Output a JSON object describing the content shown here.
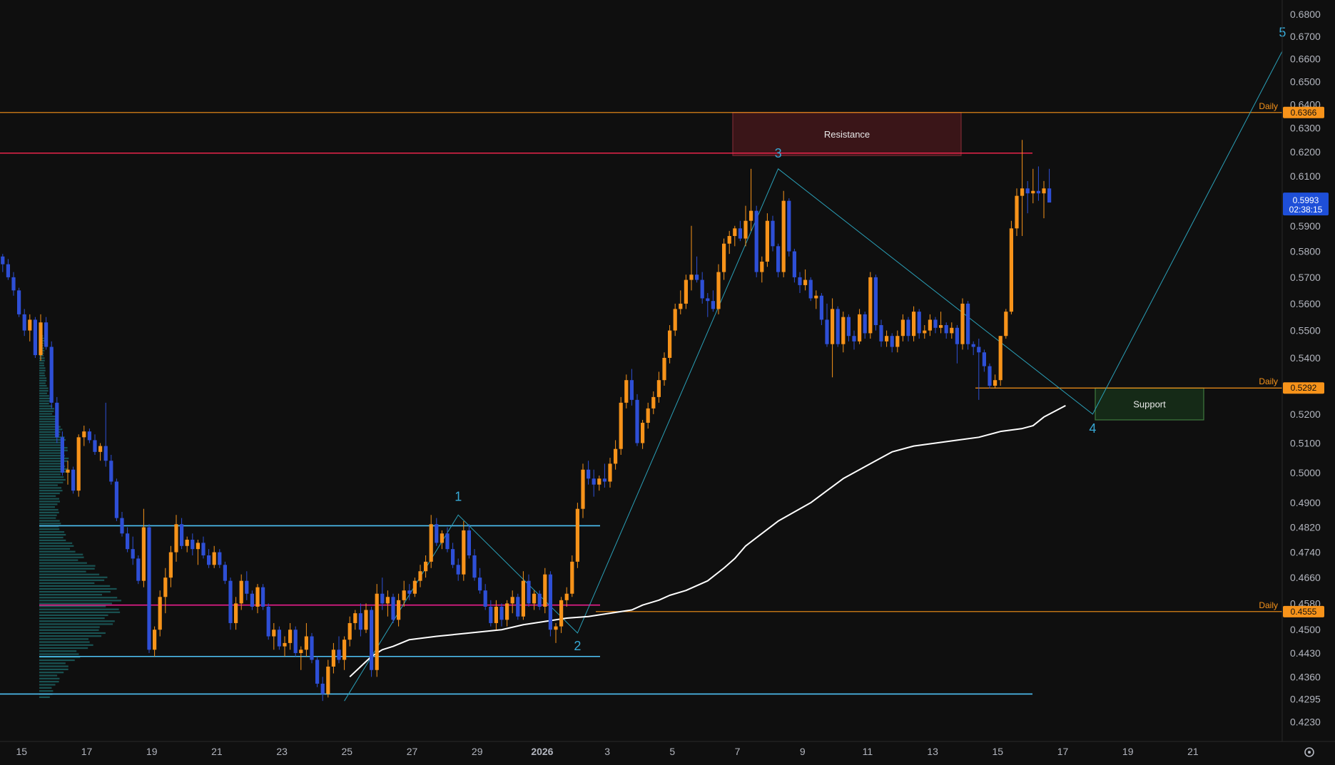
{
  "colors": {
    "background": "#0f0f0f",
    "bull": "#f7931a",
    "bear": "#2e4fd6",
    "ma": "#ffffff",
    "daily": "#f7931a",
    "resistance_line": "#e8244a",
    "poc": "#e91e8c",
    "range": "#4fc3f7",
    "wave": "#2aa0b8",
    "resistance_fill": "#3a1518",
    "support_fill": "#152a17",
    "price_tag": "#1e4fd8",
    "volume_profile": "#1e6b6b"
  },
  "settings_icon": "gear-icon",
  "chart_data": {
    "type": "candlestick",
    "y_axis": {
      "scale": "log",
      "range": [
        0.4175,
        0.6865
      ],
      "ticks": [
        0.68,
        0.67,
        0.66,
        0.65,
        0.64,
        0.63,
        0.62,
        0.61,
        0.59,
        0.58,
        0.57,
        0.56,
        0.55,
        0.54,
        0.52,
        0.51,
        0.5,
        0.49,
        0.482,
        0.474,
        0.466,
        0.458,
        0.45,
        0.443,
        0.436,
        0.4295,
        0.423
      ],
      "tick_labels": [
        "0.6800",
        "0.6700",
        "0.6600",
        "0.6500",
        "0.6400",
        "0.6300",
        "0.6200",
        "0.6100",
        "0.5900",
        "0.5800",
        "0.5700",
        "0.5600",
        "0.5500",
        "0.5400",
        "0.5200",
        "0.5100",
        "0.5000",
        "0.4900",
        "0.4820",
        "0.4740",
        "0.4660",
        "0.4580",
        "0.4500",
        "0.4430",
        "0.4360",
        "0.4295",
        "0.4230"
      ]
    },
    "x_axis": {
      "ticks": [
        "15",
        "17",
        "19",
        "21",
        "23",
        "25",
        "27",
        "29",
        "2026",
        "3",
        "5",
        "7",
        "9",
        "11",
        "13",
        "15",
        "17",
        "19",
        "21"
      ],
      "bold_tick": "2026"
    },
    "bars_per_day": 6,
    "candles": [
      [
        0.578,
        0.579,
        0.572,
        0.575
      ],
      [
        0.575,
        0.577,
        0.569,
        0.57
      ],
      [
        0.57,
        0.572,
        0.563,
        0.565
      ],
      [
        0.565,
        0.566,
        0.555,
        0.556
      ],
      [
        0.556,
        0.558,
        0.548,
        0.55
      ],
      [
        0.55,
        0.556,
        0.546,
        0.554
      ],
      [
        0.554,
        0.555,
        0.54,
        0.541
      ],
      [
        0.541,
        0.556,
        0.539,
        0.553
      ],
      [
        0.553,
        0.555,
        0.543,
        0.544
      ],
      [
        0.544,
        0.546,
        0.522,
        0.524
      ],
      [
        0.524,
        0.526,
        0.51,
        0.512
      ],
      [
        0.512,
        0.514,
        0.499,
        0.5
      ],
      [
        0.5,
        0.504,
        0.496,
        0.501
      ],
      [
        0.501,
        0.502,
        0.493,
        0.494
      ],
      [
        0.494,
        0.513,
        0.492,
        0.512
      ],
      [
        0.512,
        0.516,
        0.509,
        0.514
      ],
      [
        0.514,
        0.515,
        0.51,
        0.511
      ],
      [
        0.511,
        0.513,
        0.506,
        0.507
      ],
      [
        0.507,
        0.51,
        0.504,
        0.509
      ],
      [
        0.509,
        0.524,
        0.502,
        0.504
      ],
      [
        0.504,
        0.506,
        0.496,
        0.497
      ],
      [
        0.497,
        0.498,
        0.484,
        0.485
      ],
      [
        0.485,
        0.487,
        0.479,
        0.48
      ],
      [
        0.48,
        0.482,
        0.474,
        0.475
      ],
      [
        0.475,
        0.479,
        0.47,
        0.472
      ],
      [
        0.472,
        0.473,
        0.464,
        0.465
      ],
      [
        0.465,
        0.488,
        0.463,
        0.482
      ],
      [
        0.482,
        0.483,
        0.443,
        0.444
      ],
      [
        0.444,
        0.451,
        0.442,
        0.45
      ],
      [
        0.45,
        0.462,
        0.448,
        0.46
      ],
      [
        0.46,
        0.469,
        0.455,
        0.466
      ],
      [
        0.466,
        0.476,
        0.463,
        0.474
      ],
      [
        0.474,
        0.486,
        0.471,
        0.483
      ],
      [
        0.483,
        0.485,
        0.475,
        0.476
      ],
      [
        0.476,
        0.479,
        0.474,
        0.478
      ],
      [
        0.478,
        0.48,
        0.473,
        0.475
      ],
      [
        0.475,
        0.478,
        0.47,
        0.477
      ],
      [
        0.477,
        0.479,
        0.472,
        0.473
      ],
      [
        0.473,
        0.475,
        0.469,
        0.47
      ],
      [
        0.47,
        0.476,
        0.469,
        0.474
      ],
      [
        0.474,
        0.475,
        0.469,
        0.47
      ],
      [
        0.47,
        0.471,
        0.464,
        0.465
      ],
      [
        0.465,
        0.466,
        0.45,
        0.452
      ],
      [
        0.452,
        0.46,
        0.45,
        0.458
      ],
      [
        0.458,
        0.467,
        0.456,
        0.465
      ],
      [
        0.465,
        0.468,
        0.459,
        0.461
      ],
      [
        0.461,
        0.462,
        0.456,
        0.457
      ],
      [
        0.457,
        0.464,
        0.455,
        0.463
      ],
      [
        0.463,
        0.464,
        0.456,
        0.457
      ],
      [
        0.457,
        0.458,
        0.447,
        0.448
      ],
      [
        0.448,
        0.452,
        0.444,
        0.45
      ],
      [
        0.45,
        0.451,
        0.444,
        0.445
      ],
      [
        0.445,
        0.448,
        0.442,
        0.446
      ],
      [
        0.446,
        0.452,
        0.444,
        0.45
      ],
      [
        0.45,
        0.451,
        0.442,
        0.443
      ],
      [
        0.443,
        0.445,
        0.438,
        0.444
      ],
      [
        0.444,
        0.452,
        0.442,
        0.448
      ],
      [
        0.448,
        0.449,
        0.44,
        0.441
      ],
      [
        0.441,
        0.442,
        0.433,
        0.434
      ],
      [
        0.434,
        0.436,
        0.429,
        0.431
      ],
      [
        0.431,
        0.441,
        0.43,
        0.439
      ],
      [
        0.439,
        0.446,
        0.437,
        0.444
      ],
      [
        0.444,
        0.448,
        0.44,
        0.441
      ],
      [
        0.441,
        0.448,
        0.438,
        0.447
      ],
      [
        0.447,
        0.454,
        0.445,
        0.452
      ],
      [
        0.452,
        0.456,
        0.45,
        0.455
      ],
      [
        0.455,
        0.458,
        0.448,
        0.45
      ],
      [
        0.45,
        0.458,
        0.449,
        0.456
      ],
      [
        0.456,
        0.457,
        0.436,
        0.438
      ],
      [
        0.438,
        0.464,
        0.436,
        0.461
      ],
      [
        0.461,
        0.466,
        0.456,
        0.458
      ],
      [
        0.458,
        0.462,
        0.454,
        0.46
      ],
      [
        0.46,
        0.461,
        0.452,
        0.453
      ],
      [
        0.453,
        0.461,
        0.451,
        0.459
      ],
      [
        0.459,
        0.465,
        0.457,
        0.462
      ],
      [
        0.462,
        0.464,
        0.459,
        0.461
      ],
      [
        0.461,
        0.466,
        0.46,
        0.465
      ],
      [
        0.465,
        0.47,
        0.463,
        0.468
      ],
      [
        0.468,
        0.473,
        0.466,
        0.471
      ],
      [
        0.471,
        0.486,
        0.469,
        0.483
      ],
      [
        0.483,
        0.485,
        0.476,
        0.477
      ],
      [
        0.477,
        0.481,
        0.475,
        0.48
      ],
      [
        0.48,
        0.482,
        0.474,
        0.475
      ],
      [
        0.475,
        0.477,
        0.469,
        0.47
      ],
      [
        0.47,
        0.472,
        0.465,
        0.467
      ],
      [
        0.467,
        0.484,
        0.465,
        0.481
      ],
      [
        0.481,
        0.483,
        0.472,
        0.473
      ],
      [
        0.473,
        0.475,
        0.465,
        0.466
      ],
      [
        0.466,
        0.469,
        0.461,
        0.462
      ],
      [
        0.462,
        0.464,
        0.456,
        0.457
      ],
      [
        0.457,
        0.459,
        0.451,
        0.452
      ],
      [
        0.452,
        0.459,
        0.45,
        0.457
      ],
      [
        0.457,
        0.458,
        0.451,
        0.453
      ],
      [
        0.453,
        0.459,
        0.451,
        0.458
      ],
      [
        0.458,
        0.462,
        0.455,
        0.46
      ],
      [
        0.46,
        0.461,
        0.453,
        0.454
      ],
      [
        0.454,
        0.468,
        0.453,
        0.465
      ],
      [
        0.465,
        0.467,
        0.457,
        0.458
      ],
      [
        0.458,
        0.462,
        0.456,
        0.461
      ],
      [
        0.461,
        0.462,
        0.456,
        0.457
      ],
      [
        0.457,
        0.469,
        0.455,
        0.467
      ],
      [
        0.467,
        0.468,
        0.448,
        0.45
      ],
      [
        0.45,
        0.452,
        0.446,
        0.451
      ],
      [
        0.451,
        0.46,
        0.449,
        0.459
      ],
      [
        0.459,
        0.463,
        0.457,
        0.461
      ],
      [
        0.461,
        0.473,
        0.46,
        0.471
      ],
      [
        0.471,
        0.49,
        0.469,
        0.488
      ],
      [
        0.488,
        0.503,
        0.485,
        0.501
      ],
      [
        0.501,
        0.504,
        0.496,
        0.498
      ],
      [
        0.498,
        0.501,
        0.492,
        0.496
      ],
      [
        0.496,
        0.499,
        0.494,
        0.498
      ],
      [
        0.498,
        0.503,
        0.495,
        0.497
      ],
      [
        0.497,
        0.505,
        0.495,
        0.503
      ],
      [
        0.503,
        0.511,
        0.501,
        0.508
      ],
      [
        0.508,
        0.526,
        0.506,
        0.524
      ],
      [
        0.524,
        0.534,
        0.522,
        0.532
      ],
      [
        0.532,
        0.536,
        0.523,
        0.525
      ],
      [
        0.525,
        0.527,
        0.509,
        0.51
      ],
      [
        0.51,
        0.518,
        0.508,
        0.517
      ],
      [
        0.517,
        0.524,
        0.515,
        0.522
      ],
      [
        0.522,
        0.528,
        0.52,
        0.526
      ],
      [
        0.526,
        0.535,
        0.524,
        0.532
      ],
      [
        0.532,
        0.542,
        0.53,
        0.54
      ],
      [
        0.54,
        0.552,
        0.538,
        0.55
      ],
      [
        0.55,
        0.56,
        0.548,
        0.558
      ],
      [
        0.558,
        0.565,
        0.556,
        0.56
      ],
      [
        0.56,
        0.571,
        0.558,
        0.569
      ],
      [
        0.569,
        0.59,
        0.565,
        0.571
      ],
      [
        0.571,
        0.578,
        0.568,
        0.569
      ],
      [
        0.569,
        0.572,
        0.56,
        0.562
      ],
      [
        0.562,
        0.564,
        0.555,
        0.561
      ],
      [
        0.561,
        0.565,
        0.557,
        0.558
      ],
      [
        0.558,
        0.575,
        0.556,
        0.572
      ],
      [
        0.572,
        0.585,
        0.569,
        0.583
      ],
      [
        0.583,
        0.588,
        0.579,
        0.586
      ],
      [
        0.586,
        0.59,
        0.582,
        0.589
      ],
      [
        0.589,
        0.592,
        0.584,
        0.585
      ],
      [
        0.585,
        0.598,
        0.582,
        0.592
      ],
      [
        0.592,
        0.613,
        0.588,
        0.596
      ],
      [
        0.596,
        0.598,
        0.57,
        0.572
      ],
      [
        0.572,
        0.578,
        0.568,
        0.576
      ],
      [
        0.576,
        0.595,
        0.574,
        0.592
      ],
      [
        0.592,
        0.594,
        0.58,
        0.582
      ],
      [
        0.582,
        0.583,
        0.57,
        0.572
      ],
      [
        0.572,
        0.604,
        0.57,
        0.6
      ],
      [
        0.6,
        0.601,
        0.578,
        0.58
      ],
      [
        0.58,
        0.581,
        0.568,
        0.57
      ],
      [
        0.57,
        0.572,
        0.564,
        0.567
      ],
      [
        0.567,
        0.573,
        0.565,
        0.569
      ],
      [
        0.569,
        0.57,
        0.561,
        0.562
      ],
      [
        0.562,
        0.565,
        0.558,
        0.563
      ],
      [
        0.563,
        0.564,
        0.552,
        0.554
      ],
      [
        0.554,
        0.56,
        0.544,
        0.545
      ],
      [
        0.545,
        0.562,
        0.533,
        0.558
      ],
      [
        0.558,
        0.559,
        0.544,
        0.545
      ],
      [
        0.545,
        0.557,
        0.542,
        0.555
      ],
      [
        0.555,
        0.556,
        0.546,
        0.548
      ],
      [
        0.548,
        0.55,
        0.543,
        0.546
      ],
      [
        0.546,
        0.558,
        0.545,
        0.556
      ],
      [
        0.556,
        0.557,
        0.547,
        0.549
      ],
      [
        0.549,
        0.572,
        0.547,
        0.57
      ],
      [
        0.57,
        0.571,
        0.55,
        0.552
      ],
      [
        0.552,
        0.554,
        0.544,
        0.546
      ],
      [
        0.546,
        0.55,
        0.544,
        0.548
      ],
      [
        0.548,
        0.549,
        0.542,
        0.544
      ],
      [
        0.544,
        0.55,
        0.542,
        0.548
      ],
      [
        0.548,
        0.556,
        0.546,
        0.554
      ],
      [
        0.554,
        0.555,
        0.546,
        0.548
      ],
      [
        0.548,
        0.559,
        0.546,
        0.557
      ],
      [
        0.557,
        0.558,
        0.547,
        0.549
      ],
      [
        0.549,
        0.552,
        0.547,
        0.55
      ],
      [
        0.55,
        0.556,
        0.548,
        0.554
      ],
      [
        0.554,
        0.555,
        0.549,
        0.551
      ],
      [
        0.551,
        0.557,
        0.549,
        0.552
      ],
      [
        0.552,
        0.553,
        0.547,
        0.549
      ],
      [
        0.549,
        0.553,
        0.547,
        0.551
      ],
      [
        0.551,
        0.552,
        0.538,
        0.545
      ],
      [
        0.545,
        0.562,
        0.543,
        0.56
      ],
      [
        0.56,
        0.561,
        0.543,
        0.545
      ],
      [
        0.545,
        0.546,
        0.541,
        0.544
      ],
      [
        0.544,
        0.547,
        0.525,
        0.542
      ],
      [
        0.542,
        0.543,
        0.535,
        0.537
      ],
      [
        0.537,
        0.538,
        0.529,
        0.53
      ],
      [
        0.53,
        0.534,
        0.529,
        0.532
      ],
      [
        0.532,
        0.548,
        0.53,
        0.548
      ],
      [
        0.548,
        0.558,
        0.547,
        0.557
      ],
      [
        0.557,
        0.592,
        0.556,
        0.589
      ],
      [
        0.589,
        0.605,
        0.586,
        0.602
      ],
      [
        0.602,
        0.625,
        0.586,
        0.605
      ],
      [
        0.605,
        0.608,
        0.595,
        0.603
      ],
      [
        0.603,
        0.613,
        0.599,
        0.604
      ],
      [
        0.604,
        0.614,
        0.6,
        0.603
      ],
      [
        0.603,
        0.608,
        0.593,
        0.605
      ],
      [
        0.605,
        0.613,
        0.6,
        0.5993
      ]
    ],
    "moving_average": [
      [
        64,
        0.436
      ],
      [
        66,
        0.439
      ],
      [
        68,
        0.442
      ],
      [
        70,
        0.444
      ],
      [
        72,
        0.445
      ],
      [
        75,
        0.447
      ],
      [
        80,
        0.448
      ],
      [
        86,
        0.449
      ],
      [
        92,
        0.45
      ],
      [
        96,
        0.4515
      ],
      [
        100,
        0.4525
      ],
      [
        104,
        0.4535
      ],
      [
        108,
        0.454
      ],
      [
        112,
        0.455
      ],
      [
        116,
        0.456
      ],
      [
        118,
        0.4575
      ],
      [
        121,
        0.459
      ],
      [
        123,
        0.4605
      ],
      [
        126,
        0.462
      ],
      [
        130,
        0.465
      ],
      [
        133,
        0.469
      ],
      [
        135,
        0.472
      ],
      [
        137,
        0.476
      ],
      [
        140,
        0.48
      ],
      [
        143,
        0.484
      ],
      [
        146,
        0.487
      ],
      [
        149,
        0.49
      ],
      [
        152,
        0.494
      ],
      [
        155,
        0.498
      ],
      [
        158,
        0.501
      ],
      [
        161,
        0.504
      ],
      [
        164,
        0.507
      ],
      [
        168,
        0.509
      ],
      [
        172,
        0.51
      ],
      [
        176,
        0.511
      ],
      [
        180,
        0.512
      ],
      [
        184,
        0.514
      ],
      [
        188,
        0.515
      ],
      [
        190,
        0.516
      ],
      [
        192,
        0.519
      ],
      [
        194,
        0.521
      ],
      [
        196,
        0.523
      ]
    ],
    "horizontal_levels": [
      {
        "value": 0.6366,
        "label": "Daily",
        "tag": "0.6366"
      },
      {
        "value": 0.5292,
        "label": "Daily",
        "tag": "0.5292"
      },
      {
        "value": 0.4555,
        "label": "Daily",
        "tag": "0.4555"
      }
    ],
    "other_lines": [
      {
        "kind": "resistance",
        "value": 0.6195
      },
      {
        "kind": "poc",
        "value": 0.4575
      },
      {
        "kind": "range",
        "value": 0.4825
      },
      {
        "kind": "range",
        "value": 0.442
      },
      {
        "kind": "range",
        "value": 0.431
      }
    ],
    "zones": [
      {
        "label": "Resistance",
        "high": 0.6366,
        "low": 0.6185
      },
      {
        "label": "Support",
        "high": 0.5292,
        "low": 0.518
      }
    ],
    "elliott_waves": [
      {
        "label": "",
        "bar": 63,
        "price": 0.429
      },
      {
        "label": "1",
        "bar": 84,
        "price": 0.486
      },
      {
        "label": "2",
        "bar": 106,
        "price": 0.449
      },
      {
        "label": "3",
        "bar": 143,
        "price": 0.613
      },
      {
        "label": "4",
        "bar": 201,
        "price": 0.52
      },
      {
        "label": "5",
        "bar": 236,
        "price": 0.6635
      }
    ],
    "last_price": {
      "value": "0.5993",
      "countdown": "02:38:15"
    }
  }
}
